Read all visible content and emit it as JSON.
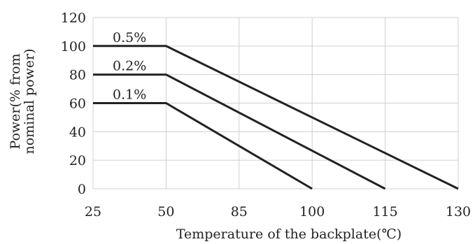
{
  "chart_data": {
    "type": "line",
    "title": "",
    "xlabel": "Temperature of the backplate(℃)",
    "ylabel_lines": [
      "Power(% from",
      "nominal power)"
    ],
    "x_categories": [
      "25",
      "50",
      "85",
      "100",
      "115",
      "130"
    ],
    "x": [
      25,
      50,
      85,
      100,
      115,
      130
    ],
    "y_ticks": [
      "0",
      "20",
      "40",
      "60",
      "80",
      "100",
      "120"
    ],
    "ylim": [
      0,
      120
    ],
    "grid": true,
    "legend": "none",
    "series": [
      {
        "name": "0.5%",
        "x": [
          25,
          50,
          130
        ],
        "values": [
          100,
          100,
          0
        ]
      },
      {
        "name": "0.2%",
        "x": [
          25,
          50,
          115
        ],
        "values": [
          80,
          80,
          0
        ]
      },
      {
        "name": "0.1%",
        "x": [
          25,
          50,
          100
        ],
        "values": [
          60,
          60,
          0
        ]
      }
    ],
    "colors": {
      "line": "#222222",
      "grid": "#d0d0d0",
      "text": "#222222"
    }
  }
}
